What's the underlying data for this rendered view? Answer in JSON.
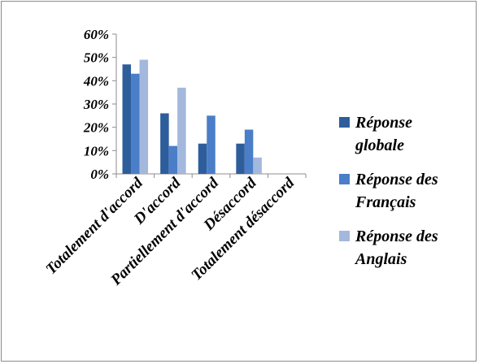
{
  "chart_data": {
    "type": "bar",
    "categories": [
      "Totalement d'accord",
      "D'accord",
      "Partiellement d'accord",
      "Désaccord",
      "Totalement désaccord"
    ],
    "series": [
      {
        "name": "Réponse globale",
        "color": "#2e5d9c",
        "values": [
          47,
          26,
          13,
          13,
          0
        ]
      },
      {
        "name": "Réponse des Français",
        "color": "#4a7ec9",
        "values": [
          43,
          12,
          25,
          19,
          0
        ]
      },
      {
        "name": "Réponse des Anglais",
        "color": "#a3b8dc",
        "values": [
          49,
          37,
          0,
          7,
          0
        ]
      }
    ],
    "y_ticks": [
      "0%",
      "10%",
      "20%",
      "30%",
      "40%",
      "50%",
      "60%"
    ],
    "ylim": [
      0,
      60
    ],
    "y_unit": "%",
    "grid": false,
    "legend_placement": "right",
    "legend_lines": [
      [
        "Réponse",
        "globale"
      ],
      [
        "Réponse des",
        "Français"
      ],
      [
        "Réponse des",
        "Anglais"
      ]
    ],
    "title": "",
    "xlabel": "",
    "ylabel": ""
  }
}
